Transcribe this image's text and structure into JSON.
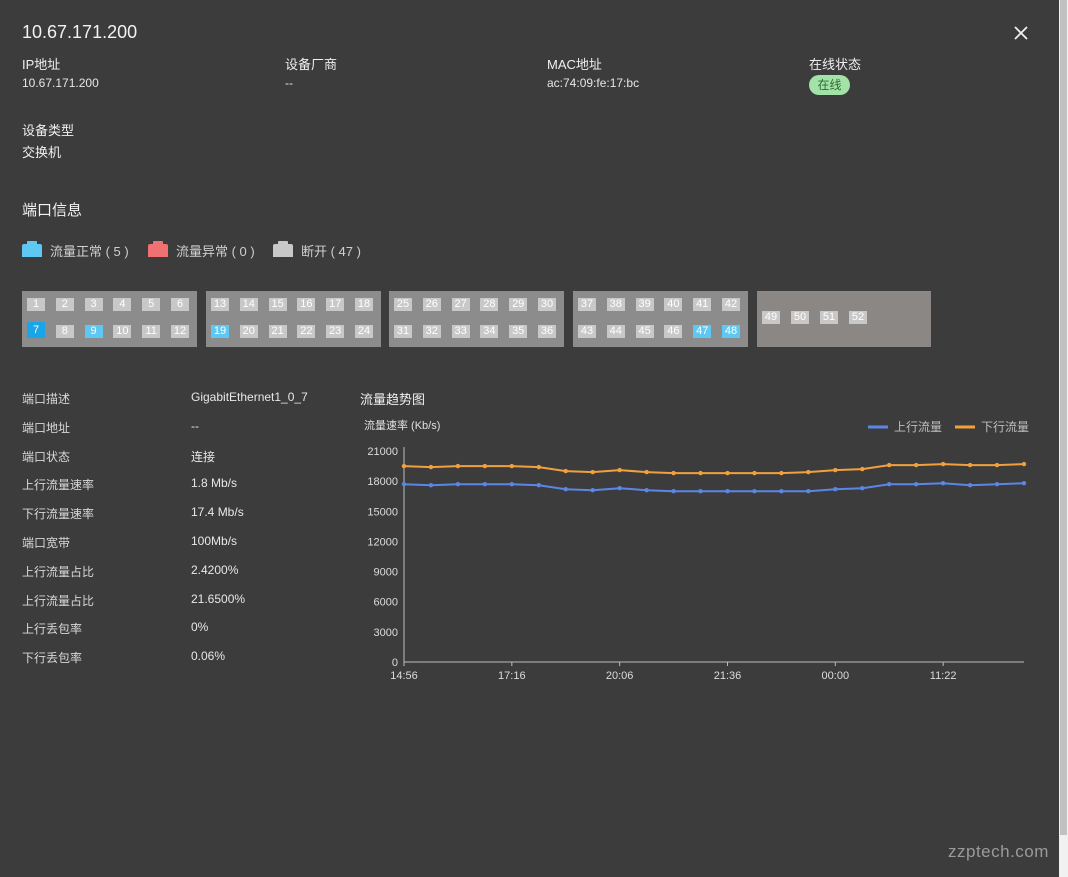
{
  "window": {
    "title": "10.67.171.200"
  },
  "info": {
    "ip_label": "IP地址",
    "ip_value": "10.67.171.200",
    "vendor_label": "设备厂商",
    "vendor_value": "--",
    "mac_label": "MAC地址",
    "mac_value": "ac:74:09:fe:17:bc",
    "status_label": "在线状态",
    "status_value": "在线",
    "type_label": "设备类型",
    "type_value": "交换机"
  },
  "ports_section": {
    "title": "端口信息",
    "legend": [
      {
        "label": "流量正常 ( 5 )",
        "color": "#5ec8f2"
      },
      {
        "label": "流量异常 ( 0 )",
        "color": "#f07171"
      },
      {
        "label": "断开 ( 47 )",
        "color": "#c8c8c8"
      }
    ],
    "groups": [
      {
        "top": [
          "1",
          "2",
          "3",
          "4",
          "5",
          "6"
        ],
        "bottom": [
          "7",
          "8",
          "9",
          "10",
          "11",
          "12"
        ]
      },
      {
        "top": [
          "13",
          "14",
          "15",
          "16",
          "17",
          "18"
        ],
        "bottom": [
          "19",
          "20",
          "21",
          "22",
          "23",
          "24"
        ]
      },
      {
        "top": [
          "25",
          "26",
          "27",
          "28",
          "29",
          "30"
        ],
        "bottom": [
          "31",
          "32",
          "33",
          "34",
          "35",
          "36"
        ]
      },
      {
        "top": [
          "37",
          "38",
          "39",
          "40",
          "41",
          "42"
        ],
        "bottom": [
          "43",
          "44",
          "45",
          "46",
          "47",
          "48"
        ]
      },
      {
        "top": [],
        "bottom": [
          "49",
          "50",
          "51",
          "52"
        ]
      }
    ],
    "up_ports": [
      "7",
      "9",
      "19",
      "47",
      "48"
    ],
    "selected_port": "7"
  },
  "port_detail": [
    {
      "label": "端口描述",
      "value": "GigabitEthernet1_0_7"
    },
    {
      "label": "端口地址",
      "value": "--"
    },
    {
      "label": "端口状态",
      "value": "连接"
    },
    {
      "label": "上行流量速率",
      "value": "1.8 Mb/s"
    },
    {
      "label": "下行流量速率",
      "value": "17.4 Mb/s"
    },
    {
      "label": "端口宽带",
      "value": "100Mb/s"
    },
    {
      "label": "上行流量占比",
      "value": "2.4200%"
    },
    {
      "label": "上行流量占比",
      "value": "21.6500%"
    },
    {
      "label": "上行丢包率",
      "value": "0%"
    },
    {
      "label": "下行丢包率",
      "value": "0.06%"
    }
  ],
  "chart": {
    "title": "流量趋势图"
  },
  "chart_data": {
    "type": "line",
    "ylabel": "流量速率 (Kb/s)",
    "ylim": [
      0,
      21000
    ],
    "yticks": [
      0,
      3000,
      6000,
      9000,
      12000,
      15000,
      18000,
      21000
    ],
    "x_tick_labels": [
      "14:56",
      "17:16",
      "20:06",
      "21:36",
      "00:00",
      "11:22"
    ],
    "x_tick_positions": [
      0,
      4,
      8,
      12,
      16,
      20
    ],
    "points": 24,
    "legend_position": "top-right",
    "series": [
      {
        "name": "上行流量",
        "color": "#5b86e5",
        "values": [
          17700,
          17600,
          17700,
          17700,
          17700,
          17600,
          17200,
          17100,
          17300,
          17100,
          17000,
          17000,
          17000,
          17000,
          17000,
          17000,
          17200,
          17300,
          17700,
          17700,
          17800,
          17600,
          17700,
          17800
        ]
      },
      {
        "name": "下行流量",
        "color": "#f2a03d",
        "values": [
          19500,
          19400,
          19500,
          19500,
          19500,
          19400,
          19000,
          18900,
          19100,
          18900,
          18800,
          18800,
          18800,
          18800,
          18800,
          18900,
          19100,
          19200,
          19600,
          19600,
          19700,
          19600,
          19600,
          19700
        ]
      }
    ]
  },
  "watermark": "zzptech.com"
}
